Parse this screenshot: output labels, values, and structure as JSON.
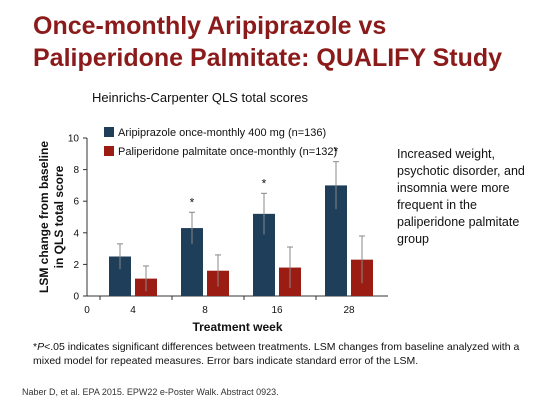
{
  "slide": {
    "title_line1": "Once-monthly Aripiprazole vs",
    "title_line2": "Paliperidone Palmitate: QUALIFY Study",
    "side_note": "Increased weight, psychotic disorder, and insomnia were more frequent in the paliperidone palmitate group",
    "footnote_symbol": "*",
    "footnote_p": "P",
    "footnote_text": "<.05 indicates significant differences between treatments. LSM changes from baseline analyzed with a mixed model for repeated measures. Error bars indicate standard error of the LSM.",
    "citation": "Naber D, et al. EPA 2015. EPW22 e-Poster Walk. Abstract 0923."
  },
  "chart_data": {
    "type": "bar",
    "title": "Heinrichs-Carpenter QLS total scores",
    "xlabel": "Treatment week",
    "ylabel": "LSM change from baseline in QLS total score",
    "ylabel_lines": [
      "LSM change from baseline",
      "in QLS total score"
    ],
    "categories": [
      "4",
      "8",
      "16",
      "28"
    ],
    "x_ticks": [
      "0",
      "4",
      "8",
      "16",
      "28"
    ],
    "ylim": [
      0,
      10
    ],
    "y_ticks": [
      0,
      2,
      4,
      6,
      8,
      10
    ],
    "grid": false,
    "legend_position": "top-left",
    "series": [
      {
        "name": "Aripiprazole once-monthly 400 mg (n=136)",
        "color": "#1f3e5a",
        "values": [
          2.5,
          4.3,
          5.2,
          7.0
        ],
        "errors": [
          0.8,
          1.0,
          1.3,
          1.5
        ]
      },
      {
        "name": "Paliperidone palmitate once-monthly (n=132)",
        "color": "#9b1c12",
        "values": [
          1.1,
          1.6,
          1.8,
          2.3
        ],
        "errors": [
          0.8,
          1.0,
          1.3,
          1.5
        ]
      }
    ],
    "significance": [
      false,
      true,
      true,
      true
    ],
    "significance_marker": "*"
  }
}
